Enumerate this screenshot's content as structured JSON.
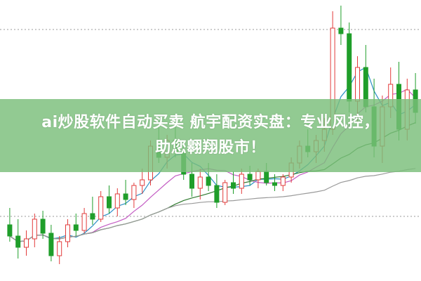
{
  "headline": {
    "line1": "ai炒股软件自动买卖 航宇配资实盘：专业风控，",
    "line2": "助您翱翔股市！"
  },
  "colors": {
    "up": "#e23b3b",
    "down": "#1f9e2a",
    "banner": "#7abe7a",
    "ma5": "#2b8fc4",
    "ma10": "#c35cc3",
    "ma20": "#2f7a2f",
    "ma60": "#9a9a9a",
    "grid": "#999999"
  },
  "chart_data": {
    "type": "candlestick",
    "title": "",
    "xlabel": "",
    "ylabel": "",
    "ylim": [
      0,
      100
    ],
    "grid": "dotted horizontal",
    "moving_averages": [
      5,
      10,
      20,
      60
    ],
    "ohlc": [
      [
        20,
        26,
        14,
        16
      ],
      [
        16,
        22,
        8,
        12
      ],
      [
        12,
        18,
        9,
        15
      ],
      [
        15,
        24,
        12,
        22
      ],
      [
        22,
        25,
        15,
        17
      ],
      [
        17,
        20,
        7,
        9
      ],
      [
        9,
        16,
        6,
        14
      ],
      [
        14,
        22,
        12,
        20
      ],
      [
        20,
        24,
        16,
        18
      ],
      [
        18,
        26,
        17,
        24
      ],
      [
        24,
        30,
        20,
        22
      ],
      [
        22,
        32,
        21,
        30
      ],
      [
        30,
        34,
        24,
        26
      ],
      [
        26,
        33,
        23,
        31
      ],
      [
        31,
        36,
        27,
        29
      ],
      [
        29,
        35,
        26,
        34
      ],
      [
        34,
        40,
        31,
        36
      ],
      [
        36,
        50,
        34,
        48
      ],
      [
        48,
        56,
        42,
        44
      ],
      [
        44,
        52,
        40,
        50
      ],
      [
        50,
        56,
        44,
        46
      ],
      [
        46,
        48,
        36,
        38
      ],
      [
        38,
        42,
        30,
        33
      ],
      [
        33,
        40,
        29,
        37
      ],
      [
        37,
        42,
        32,
        34
      ],
      [
        34,
        38,
        26,
        28
      ],
      [
        28,
        36,
        27,
        35
      ],
      [
        35,
        39,
        31,
        33
      ],
      [
        33,
        40,
        31,
        38
      ],
      [
        38,
        41,
        34,
        36
      ],
      [
        36,
        40,
        33,
        39
      ],
      [
        39,
        42,
        34,
        35
      ],
      [
        35,
        38,
        32,
        34
      ],
      [
        34,
        38,
        32,
        37
      ],
      [
        37,
        44,
        35,
        42
      ],
      [
        42,
        50,
        40,
        48
      ],
      [
        48,
        54,
        44,
        46
      ],
      [
        46,
        52,
        42,
        50
      ],
      [
        50,
        58,
        46,
        54
      ],
      [
        54,
        96,
        52,
        90
      ],
      [
        90,
        98,
        84,
        88
      ],
      [
        88,
        92,
        60,
        64
      ],
      [
        64,
        80,
        56,
        76
      ],
      [
        76,
        84,
        60,
        62
      ],
      [
        62,
        72,
        44,
        48
      ],
      [
        48,
        66,
        42,
        62
      ],
      [
        62,
        76,
        58,
        70
      ],
      [
        70,
        78,
        50,
        54
      ],
      [
        54,
        72,
        50,
        68
      ],
      [
        68,
        74,
        56,
        60
      ]
    ]
  }
}
